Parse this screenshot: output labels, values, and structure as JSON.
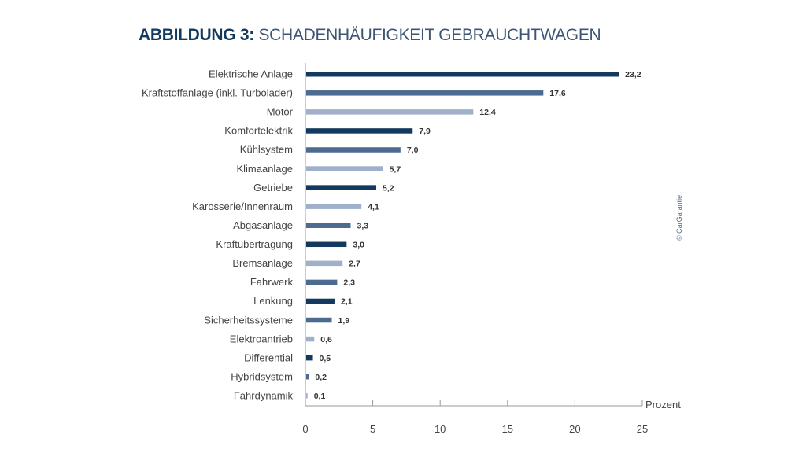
{
  "chart_data": {
    "type": "bar",
    "orientation": "horizontal",
    "title_bold": "ABBILDUNG 3:",
    "title": "SCHADENHÄUFIGKEIT GEBRAUCHTWAGEN",
    "xlabel": "Prozent",
    "ylabel": "",
    "xlim": [
      0,
      25
    ],
    "xticks": [
      "0",
      "5",
      "10",
      "15",
      "20",
      "25"
    ],
    "grid": false,
    "categories": [
      "Elektrische Anlage",
      "Kraftstoffanlage (inkl. Turbolader)",
      "Motor",
      "Komfortelektrik",
      "Kühlsystem",
      "Klimaanlage",
      "Getriebe",
      "Karosserie/Innenraum",
      "Abgasanlage",
      "Kraftübertragung",
      "Bremsanlage",
      "Fahrwerk",
      "Lenkung",
      "Sicherheitssysteme",
      "Elektroantrieb",
      "Differential",
      "Hybridsystem",
      "Fahrdynamik"
    ],
    "values": [
      23.2,
      17.6,
      12.4,
      7.9,
      7.0,
      5.7,
      5.2,
      4.1,
      3.3,
      3.0,
      2.7,
      2.3,
      2.1,
      1.9,
      0.6,
      0.5,
      0.2,
      0.1
    ],
    "value_labels": [
      "23,2",
      "17,6",
      "12,4",
      "7,9",
      "7,0",
      "5,7",
      "5,2",
      "4,1",
      "3,3",
      "3,0",
      "2,7",
      "2,3",
      "2,1",
      "1,9",
      "0,6",
      "0,5",
      "0,2",
      "0,1"
    ],
    "bar_color_index": [
      0,
      1,
      2,
      0,
      1,
      2,
      0,
      2,
      1,
      0,
      2,
      1,
      0,
      1,
      2,
      0,
      1,
      2
    ],
    "colors": [
      "#14395f",
      "#4d6b91",
      "#9fb0cb"
    ],
    "copyright": "© CarGarantie"
  }
}
